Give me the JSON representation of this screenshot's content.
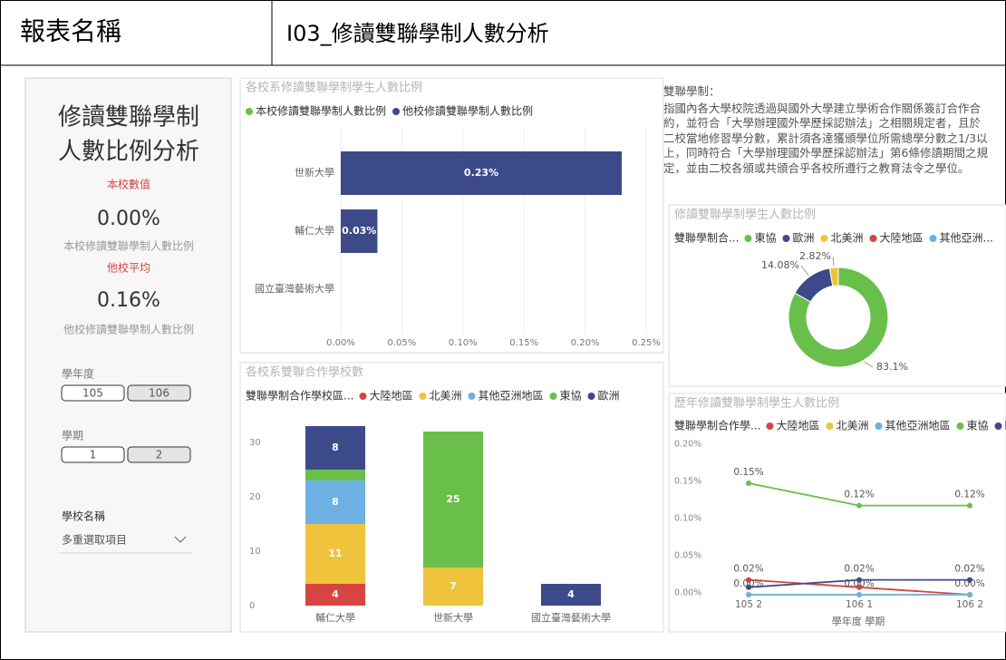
{
  "header": {
    "label": "報表名稱",
    "title": "I03_修讀雙聯學制人數分析"
  },
  "summary": {
    "title_lines": [
      "修讀雙聯學制",
      "人數比例分析"
    ],
    "own_heading": "本校數值",
    "own_value": "0.00%",
    "own_caption": "本校修讀雙聯學制人數比例",
    "other_heading": "他校平均",
    "other_value": "0.16%",
    "other_caption": "他校修讀雙聯學制人數比例"
  },
  "slicers": [
    {
      "label": "學年度",
      "options": [
        "105",
        "106"
      ],
      "selected": 1
    },
    {
      "label": "學期",
      "options": [
        "1",
        "2"
      ],
      "selected": 1
    },
    {
      "label": "學校名稱",
      "value": "多重選取項目"
    }
  ],
  "note": {
    "title": "雙聯學制：",
    "text": "指國內各大學校院透過與國外大學建立學術合作關係簽訂合作合約，並符合「大學辦理國外學歷採認辦法」之相關規定者，且於二校當地修習學分數，累計須各達獲頒學位所需總學分數之1/3以上，同時符合「大學辦理國外學歷採認辦法」第6條修讀期間之規定，並由二校各頒或共頒合乎各校所遵行之教育法令之學位。"
  },
  "chart_data": [
    {
      "type": "hbar",
      "title": "各校系修讀雙聯學制學生人數比例",
      "categories": [
        "世新大學",
        "輔仁大學",
        "國立臺灣藝術大學"
      ],
      "series": [
        {
          "name": "本校修讀雙聯學制人數比例",
          "color": "#6abf4b",
          "values": [
            0,
            0,
            0
          ]
        },
        {
          "name": "他校修讀雙聯學制人數比例",
          "color": "#3d4a8a",
          "values": [
            0.23,
            0.03,
            null
          ],
          "value_labels": [
            "0.23%",
            "0.03%",
            null
          ]
        }
      ],
      "xlim": [
        0,
        0.25
      ],
      "xticks": [
        {
          "value": 0,
          "label": "0.00%"
        },
        {
          "value": 0.05,
          "label": "0.05%"
        },
        {
          "value": 0.1,
          "label": "0.10%"
        },
        {
          "value": 0.15,
          "label": "0.15%"
        },
        {
          "value": 0.2,
          "label": "0.20%"
        },
        {
          "value": 0.25,
          "label": "0.25%"
        }
      ]
    },
    {
      "type": "stacked_bar",
      "title": "各校系雙聯合作學校數",
      "legend_title": "雙聯學制合作學校區...",
      "categories": [
        "輔仁大學",
        "世新大學",
        "國立臺灣藝術大學"
      ],
      "series": [
        {
          "name": "大陸地區",
          "color": "#d64541",
          "values": [
            4,
            null,
            null
          ]
        },
        {
          "name": "北美洲",
          "color": "#f0c33c",
          "values": [
            11,
            7,
            null
          ]
        },
        {
          "name": "其他亞洲地區",
          "color": "#6cb0e4",
          "values": [
            8,
            null,
            null
          ]
        },
        {
          "name": "東協",
          "color": "#6abf4b",
          "values": [
            2,
            25,
            null
          ]
        },
        {
          "name": "歐洲",
          "color": "#3d4a8a",
          "values": [
            8,
            null,
            4
          ]
        }
      ],
      "ylim": [
        0,
        34
      ],
      "yticks": [
        0,
        10,
        20,
        30
      ]
    },
    {
      "type": "donut",
      "title": "修讀雙聯學制學生人數比例",
      "legend_title": "雙聯學制合...",
      "categories": [
        "東協",
        "歐洲",
        "北美洲",
        "大陸地區",
        "其他亞洲..."
      ],
      "colors": [
        "#6abf4b",
        "#3d4a8a",
        "#f0c33c",
        "#d64541",
        "#6cb0e4"
      ],
      "values": [
        83.1,
        14.08,
        2.82,
        0,
        0
      ],
      "value_labels": [
        "83.1%",
        "14.08%",
        "2.82%",
        null,
        null
      ]
    },
    {
      "type": "line",
      "title": "歷年修讀雙聯學制學生人數比例",
      "legend_title": "雙聯學制合作學...",
      "categories": [
        "105 2",
        "106 1",
        "106 2"
      ],
      "x_label": "學年度 學期",
      "series": [
        {
          "name": "大陸地區",
          "color": "#d64541",
          "values": [
            0.02,
            0.01,
            0
          ],
          "value_labels": [
            "0.02%",
            null,
            null
          ]
        },
        {
          "name": "北美洲",
          "color": "#f0c33c",
          "values": [
            0,
            0,
            0
          ],
          "value_labels": [
            "0.00%",
            "0.00%",
            "0.00%"
          ]
        },
        {
          "name": "其他亞洲地區",
          "color": "#6cb0e4",
          "values": [
            0,
            0,
            0
          ]
        },
        {
          "name": "東協",
          "color": "#6abf4b",
          "values": [
            0.15,
            0.12,
            0.12
          ],
          "value_labels": [
            "0.15%",
            "0.12%",
            "0.12%"
          ]
        },
        {
          "name": "歐洲",
          "color": "#3d4a8a",
          "values": [
            0.01,
            0.02,
            0.02
          ],
          "value_labels": [
            null,
            "0.02%",
            "0.02%"
          ]
        }
      ],
      "ylim": [
        0,
        0.2
      ],
      "yticks": [
        {
          "value": 0,
          "label": "0.00%"
        },
        {
          "value": 0.05,
          "label": "0.05%"
        },
        {
          "value": 0.1,
          "label": "0.10%"
        },
        {
          "value": 0.15,
          "label": "0.15%"
        },
        {
          "value": 0.2,
          "label": "0.20%"
        }
      ]
    }
  ]
}
